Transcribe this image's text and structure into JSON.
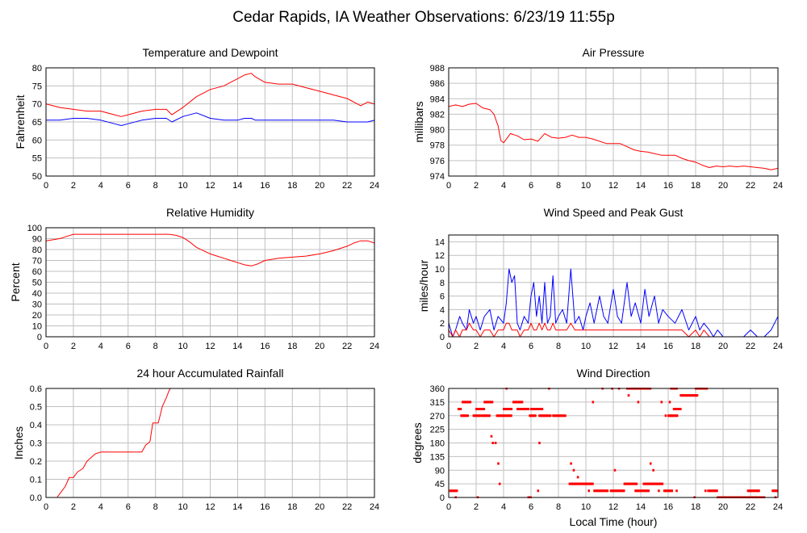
{
  "page": {
    "title": "Cedar Rapids, IA Weather Observations: 6/23/19 11:55p"
  },
  "colors": {
    "red": "#ff0000",
    "blue": "#0000ff",
    "grid": "#c0c0c0"
  },
  "chart_data": [
    {
      "id": "temp",
      "type": "line",
      "title": "Temperature and Dewpoint",
      "xlabel": "",
      "ylabel": "Fahrenheit",
      "xlim": [
        0,
        24
      ],
      "ylim": [
        50,
        80
      ],
      "xticks": [
        0,
        2,
        4,
        6,
        8,
        10,
        12,
        14,
        16,
        18,
        20,
        22,
        24
      ],
      "yticks": [
        50,
        55,
        60,
        65,
        70,
        75,
        80
      ],
      "grid": true,
      "x": [
        0,
        0.5,
        1,
        2,
        3,
        4,
        5,
        5.5,
        6,
        7,
        8,
        8.8,
        9.2,
        10,
        11,
        12,
        13,
        14,
        14.5,
        15,
        15.3,
        16,
        17,
        18,
        19,
        20,
        21,
        22,
        23,
        23.5,
        24
      ],
      "series": [
        {
          "color": "#ff0000",
          "values": [
            70,
            69.5,
            69,
            68.5,
            68,
            68,
            67,
            66.5,
            67,
            68,
            68.5,
            68.5,
            67,
            69,
            72,
            74,
            75,
            77,
            78,
            78.5,
            77.5,
            76,
            75.5,
            75.5,
            74.5,
            73.5,
            72.5,
            71.5,
            69.5,
            70.5,
            70
          ]
        },
        {
          "color": "#0000ff",
          "values": [
            65.5,
            65.5,
            65.5,
            66,
            66,
            65.5,
            64.5,
            64,
            64.5,
            65.5,
            66,
            66,
            65,
            66.5,
            67.5,
            66,
            65.5,
            65.5,
            66,
            66,
            65.5,
            65.5,
            65.5,
            65.5,
            65.5,
            65.5,
            65.5,
            65,
            65,
            65,
            65.5
          ]
        }
      ]
    },
    {
      "id": "pressure",
      "type": "line",
      "title": "Air Pressure",
      "xlabel": "",
      "ylabel": "millibars",
      "xlim": [
        0,
        24
      ],
      "ylim": [
        974,
        988
      ],
      "xticks": [
        0,
        2,
        4,
        6,
        8,
        10,
        12,
        14,
        16,
        18,
        20,
        22,
        24
      ],
      "yticks": [
        974,
        976,
        978,
        980,
        982,
        984,
        986,
        988
      ],
      "grid": true,
      "x": [
        0,
        0.5,
        1,
        1.5,
        2,
        2.5,
        3,
        3.3,
        3.6,
        3.8,
        4,
        4.5,
        5,
        5.5,
        6,
        6.5,
        7,
        7.5,
        8,
        8.5,
        9,
        9.5,
        10,
        10.5,
        11,
        11.5,
        12,
        12.5,
        13,
        13.5,
        14,
        14.5,
        15,
        15.5,
        16,
        16.5,
        17,
        17.5,
        18,
        18.5,
        19,
        19.5,
        20,
        20.5,
        21,
        21.5,
        22,
        22.5,
        23,
        23.5,
        24
      ],
      "series": [
        {
          "color": "#ff0000",
          "values": [
            983,
            983.2,
            983,
            983.3,
            983.4,
            982.8,
            982.6,
            982,
            980.5,
            978.6,
            978.3,
            979.5,
            979.2,
            978.7,
            978.8,
            978.5,
            979.5,
            979,
            978.9,
            979,
            979.3,
            979,
            979,
            978.8,
            978.5,
            978.2,
            978.2,
            978.2,
            977.8,
            977.4,
            977.2,
            977.1,
            976.9,
            976.7,
            976.7,
            976.7,
            976.3,
            976,
            975.8,
            975.4,
            975.1,
            975.3,
            975.2,
            975.3,
            975.2,
            975.3,
            975.2,
            975.1,
            975,
            974.8,
            975
          ]
        }
      ]
    },
    {
      "id": "humidity",
      "type": "line",
      "title": "Relative Humidity",
      "xlabel": "",
      "ylabel": "Percent",
      "xlim": [
        0,
        24
      ],
      "ylim": [
        0,
        100
      ],
      "xticks": [
        0,
        2,
        4,
        6,
        8,
        10,
        12,
        14,
        16,
        18,
        20,
        22,
        24
      ],
      "yticks": [
        0,
        10,
        20,
        30,
        40,
        50,
        60,
        70,
        80,
        90,
        100
      ],
      "grid": true,
      "x": [
        0,
        0.5,
        1,
        1.5,
        2,
        3,
        4,
        5,
        6,
        7,
        8,
        9,
        9.5,
        10,
        10.5,
        11,
        11.5,
        12,
        12.5,
        13,
        13.5,
        14,
        14.5,
        15,
        15.5,
        16,
        17,
        18,
        19,
        20,
        21,
        22,
        22.5,
        23,
        23.5,
        24
      ],
      "series": [
        {
          "color": "#ff0000",
          "values": [
            88,
            89,
            90,
            92,
            94,
            94,
            94,
            94,
            94,
            94,
            94,
            94,
            93,
            91,
            87,
            82,
            79,
            76,
            74,
            72,
            70,
            68,
            66,
            65,
            67,
            70,
            72,
            73,
            74,
            76,
            79,
            83,
            86,
            88,
            88,
            86
          ]
        }
      ]
    },
    {
      "id": "wind",
      "type": "line",
      "title": "Wind Speed and Peak Gust",
      "xlabel": "",
      "ylabel": "miles/hour",
      "xlim": [
        0,
        24
      ],
      "ylim": [
        0,
        15
      ],
      "xticks": [
        0,
        2,
        4,
        6,
        8,
        10,
        12,
        14,
        16,
        18,
        20,
        22,
        24
      ],
      "yticks": [
        0,
        2,
        4,
        6,
        8,
        10,
        12,
        14
      ],
      "grid": true,
      "x": [
        0,
        0.3,
        0.5,
        0.8,
        1,
        1.3,
        1.5,
        1.8,
        2,
        2.3,
        2.6,
        3,
        3.3,
        3.6,
        4,
        4.2,
        4.4,
        4.6,
        4.8,
        5,
        5.2,
        5.5,
        5.8,
        6,
        6.2,
        6.4,
        6.6,
        6.8,
        7,
        7.2,
        7.4,
        7.6,
        7.8,
        8,
        8.3,
        8.6,
        8.9,
        9.2,
        9.5,
        9.8,
        10,
        10.3,
        10.6,
        11,
        11.3,
        11.6,
        12,
        12.3,
        12.6,
        13,
        13.3,
        13.6,
        14,
        14.3,
        14.6,
        15,
        15.3,
        15.6,
        16,
        16.5,
        17,
        17.5,
        18,
        18.3,
        18.6,
        19,
        19.3,
        19.6,
        20,
        20.5,
        21,
        21.5,
        22,
        22.5,
        23,
        23.5,
        24
      ],
      "series": [
        {
          "color": "#0000ff",
          "values": [
            2,
            0,
            1,
            3,
            2,
            1,
            4,
            2,
            3,
            1,
            3,
            4,
            1,
            3,
            2,
            5,
            10,
            8,
            9,
            2,
            1,
            3,
            2,
            6,
            8,
            3,
            6,
            2,
            8,
            2,
            3,
            9,
            2,
            3,
            4,
            2,
            10,
            2,
            3,
            1,
            3,
            5,
            2,
            6,
            3,
            2,
            7,
            3,
            2,
            8,
            3,
            5,
            2,
            7,
            3,
            6,
            2,
            4,
            3,
            2,
            4,
            1,
            3,
            1,
            2,
            1,
            0,
            1,
            0,
            0,
            0,
            0,
            1,
            0,
            0,
            1,
            3
          ]
        },
        {
          "color": "#ff0000",
          "values": [
            1,
            0,
            1,
            0,
            1,
            1,
            2,
            1,
            1,
            0,
            1,
            1,
            0,
            1,
            1,
            2,
            2,
            1,
            1,
            1,
            0,
            1,
            1,
            2,
            1,
            1,
            2,
            1,
            2,
            1,
            1,
            2,
            1,
            1,
            1,
            1,
            2,
            1,
            1,
            1,
            1,
            1,
            1,
            1,
            1,
            1,
            1,
            1,
            1,
            1,
            1,
            1,
            1,
            1,
            1,
            1,
            1,
            1,
            1,
            1,
            1,
            0,
            1,
            0,
            1,
            0,
            0,
            0,
            0,
            0,
            0,
            0,
            0,
            0,
            0,
            0,
            0
          ]
        }
      ]
    },
    {
      "id": "rain",
      "type": "line",
      "title": "24 hour Accumulated Rainfall",
      "xlabel": "",
      "ylabel": "Inches",
      "xlim": [
        0,
        24
      ],
      "ylim": [
        0,
        0.6
      ],
      "xticks": [
        0,
        2,
        4,
        6,
        8,
        10,
        12,
        14,
        16,
        18,
        20,
        22,
        24
      ],
      "yticks": [
        0.0,
        0.1,
        0.2,
        0.3,
        0.4,
        0.5,
        0.6
      ],
      "ytick_labels": [
        "0.0",
        "0.1",
        "0.2",
        "0.3",
        "0.4",
        "0.5",
        "0.6"
      ],
      "grid": true,
      "x": [
        0,
        0.8,
        1.1,
        1.4,
        1.7,
        2.0,
        2.3,
        2.7,
        3.0,
        3.3,
        3.6,
        4.0,
        5,
        6,
        6.5,
        7.0,
        7.3,
        7.5,
        7.6,
        7.8,
        8.0,
        8.2,
        8.5,
        8.8,
        9.0,
        9.1
      ],
      "series": [
        {
          "color": "#ff0000",
          "values": [
            0,
            0,
            0.03,
            0.06,
            0.11,
            0.11,
            0.14,
            0.16,
            0.2,
            0.22,
            0.24,
            0.25,
            0.25,
            0.25,
            0.25,
            0.25,
            0.29,
            0.3,
            0.31,
            0.41,
            0.41,
            0.41,
            0.5,
            0.55,
            0.59,
            0.6
          ]
        }
      ]
    },
    {
      "id": "direction",
      "type": "scatter",
      "title": "Wind Direction",
      "xlabel": "Local Time (hour)",
      "ylabel": "degrees",
      "xlim": [
        0,
        24
      ],
      "ylim": [
        0,
        360
      ],
      "xticks": [
        0,
        2,
        4,
        6,
        8,
        10,
        12,
        14,
        16,
        18,
        20,
        22,
        24
      ],
      "yticks": [
        0,
        45,
        90,
        135,
        180,
        225,
        270,
        315,
        360
      ],
      "grid": true,
      "series": [
        {
          "color": "#ff0000",
          "segments": [
            [
              0.1,
              0.6,
              22
            ],
            [
              0.7,
              0.9,
              292
            ],
            [
              1.0,
              1.6,
              315
            ],
            [
              0.9,
              1.4,
              270
            ],
            [
              1.8,
              2.3,
              270
            ],
            [
              2.0,
              2.6,
              292
            ],
            [
              2.4,
              3.0,
              270
            ],
            [
              2.6,
              3.2,
              315
            ],
            [
              3.5,
              4.6,
              270
            ],
            [
              4.0,
              4.6,
              292
            ],
            [
              4.7,
              5.4,
              315
            ],
            [
              5.0,
              5.8,
              292
            ],
            [
              5.9,
              6.3,
              270
            ],
            [
              6.0,
              6.8,
              292
            ],
            [
              6.6,
              7.4,
              270
            ],
            [
              7.6,
              8.5,
              270
            ],
            [
              8.8,
              10.5,
              45
            ],
            [
              10.6,
              11.6,
              22
            ],
            [
              11.8,
              12.8,
              22
            ],
            [
              12.8,
              13.7,
              45
            ],
            [
              13.6,
              14.6,
              22
            ],
            [
              14.2,
              15.6,
              45
            ],
            [
              15.7,
              16.3,
              22
            ],
            [
              16.0,
              16.7,
              270
            ],
            [
              16.4,
              16.9,
              292
            ],
            [
              16.9,
              18.1,
              337
            ],
            [
              18.0,
              18.8,
              360
            ],
            [
              13.0,
              14.7,
              360
            ],
            [
              18.9,
              19.6,
              22
            ],
            [
              19.6,
              21.2,
              0
            ],
            [
              21.3,
              23.0,
              0
            ],
            [
              21.8,
              22.6,
              22
            ],
            [
              23.6,
              24.0,
              22
            ],
            [
              5.8,
              6.0,
              0
            ],
            [
              16.2,
              16.6,
              360
            ]
          ],
          "points": [
            [
              0.5,
              0
            ],
            [
              2.1,
              0
            ],
            [
              3.1,
              202
            ],
            [
              3.2,
              180
            ],
            [
              3.4,
              180
            ],
            [
              3.6,
              112
            ],
            [
              3.7,
              45
            ],
            [
              4.2,
              360
            ],
            [
              6.6,
              180
            ],
            [
              6.5,
              22
            ],
            [
              7.3,
              360
            ],
            [
              8.9,
              112
            ],
            [
              9.1,
              90
            ],
            [
              9.4,
              67
            ],
            [
              10.2,
              22
            ],
            [
              10.5,
              315
            ],
            [
              11.2,
              360
            ],
            [
              11.9,
              360
            ],
            [
              12.1,
              90
            ],
            [
              12.4,
              360
            ],
            [
              13.1,
              337
            ],
            [
              13.8,
              315
            ],
            [
              14.7,
              112
            ],
            [
              14.9,
              90
            ],
            [
              15.3,
              22
            ],
            [
              15.5,
              315
            ],
            [
              15.8,
              270
            ],
            [
              16.1,
              315
            ],
            [
              16.2,
              270
            ],
            [
              16.6,
              22
            ],
            [
              18.7,
              22
            ],
            [
              17.9,
              0
            ],
            [
              22.5,
              22
            ],
            [
              20.8,
              0
            ],
            [
              23.8,
              0
            ]
          ]
        }
      ]
    }
  ]
}
